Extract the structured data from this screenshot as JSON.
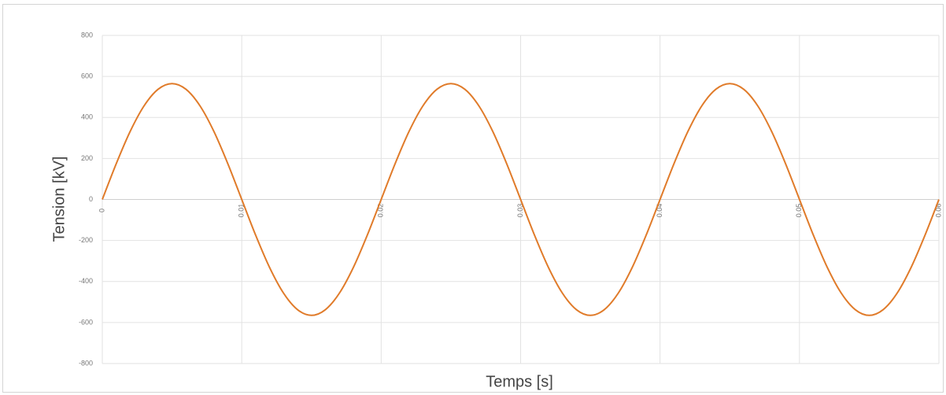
{
  "chart_data": {
    "type": "line",
    "x_label": "Temps [s]",
    "y_label": "Tension [kV]",
    "x": [
      0,
      0.001,
      0.002,
      0.003,
      0.004,
      0.005,
      0.006,
      0.007,
      0.008,
      0.009,
      0.01,
      0.011,
      0.012,
      0.013,
      0.014,
      0.015,
      0.016,
      0.017,
      0.018,
      0.019,
      0.02,
      0.021,
      0.022,
      0.023,
      0.024,
      0.025,
      0.026,
      0.027,
      0.028,
      0.029,
      0.03,
      0.031,
      0.032,
      0.033,
      0.034,
      0.035,
      0.036,
      0.037,
      0.038,
      0.039,
      0.04,
      0.041,
      0.042,
      0.043,
      0.044,
      0.045,
      0.046,
      0.047,
      0.048,
      0.049,
      0.05,
      0.051,
      0.052,
      0.053,
      0.054,
      0.055,
      0.056,
      0.057,
      0.058,
      0.059,
      0.06
    ],
    "series": [
      {
        "color": "#e07b2a",
        "values": [
          0,
          174.6,
          332.1,
          457.1,
          537.3,
          565,
          537.3,
          457.1,
          332.1,
          174.6,
          0,
          -174.6,
          -332.1,
          -457.1,
          -537.3,
          -565,
          -537.3,
          -457.1,
          -332.1,
          -174.6,
          0,
          174.6,
          332.1,
          457.1,
          537.3,
          565,
          537.3,
          457.1,
          332.1,
          174.6,
          0,
          -174.6,
          -332.1,
          -457.1,
          -537.3,
          -565,
          -537.3,
          -457.1,
          -332.1,
          -174.6,
          0,
          174.6,
          332.1,
          457.1,
          537.3,
          565,
          537.3,
          457.1,
          332.1,
          174.6,
          0,
          -174.6,
          -332.1,
          -457.1,
          -537.3,
          -565,
          -537.3,
          -457.1,
          -332.1,
          -174.6,
          0
        ]
      }
    ],
    "xlim": [
      0,
      0.06
    ],
    "xticks": [
      0,
      0.01,
      0.02,
      0.03,
      0.04,
      0.05,
      0.06
    ],
    "ylim": [
      -800,
      800
    ],
    "yticks": [
      -800,
      -600,
      -400,
      -200,
      0,
      200,
      400,
      600,
      800
    ],
    "grid": true
  }
}
